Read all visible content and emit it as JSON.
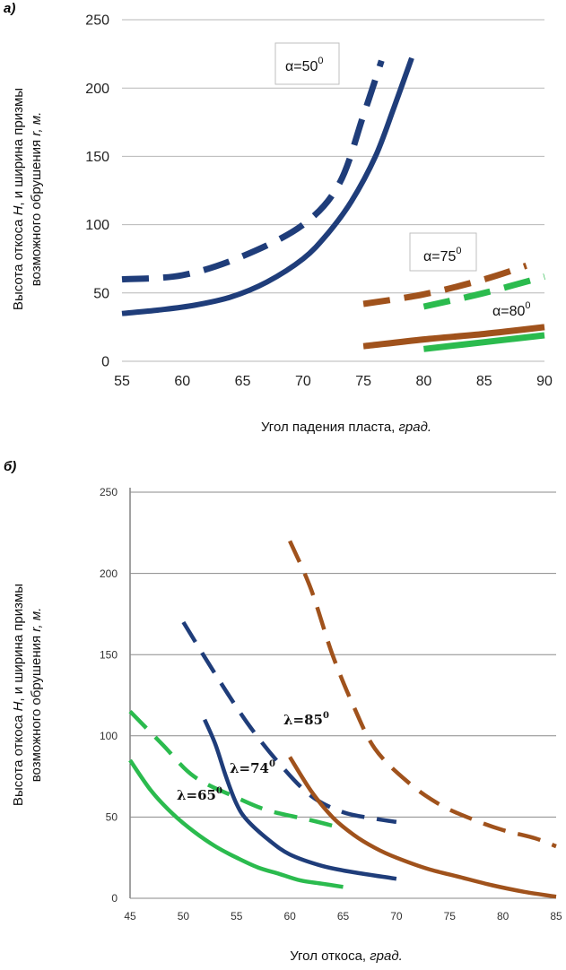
{
  "chart_data": [
    {
      "type": "line",
      "panel_label": "а)",
      "xlabel_plain": "Угол падения пласта, ",
      "xlabel_italic": "град.",
      "ylabel_line1_plain": "Высота откоса ",
      "ylabel_line1_italic": "H",
      "ylabel_line1_rest": ", и ширина призмы",
      "ylabel_line2_plain": "возможного обрушения ",
      "ylabel_line2_italic": "r, м.",
      "xlim": [
        55,
        90
      ],
      "ylim": [
        0,
        250
      ],
      "xticks": [
        "55",
        "60",
        "65",
        "70",
        "75",
        "80",
        "85",
        "90"
      ],
      "yticks": [
        "0",
        "50",
        "100",
        "150",
        "200",
        "250"
      ],
      "grid": "horizontal",
      "annotations": [
        {
          "text": "α=50",
          "sup": "0",
          "boxed": true
        },
        {
          "text": "α=75",
          "sup": "0",
          "boxed": true
        },
        {
          "text": "α=80",
          "sup": "0",
          "boxed": false
        }
      ],
      "series": [
        {
          "color": "#1f3d7a",
          "dash": true,
          "width": 7,
          "x": [
            55,
            60,
            65,
            70,
            73,
            75,
            76.5
          ],
          "y": [
            60,
            63,
            77,
            100,
            130,
            180,
            220
          ]
        },
        {
          "color": "#1f3d7a",
          "dash": false,
          "width": 6,
          "x": [
            55,
            58,
            61,
            64,
            67,
            70,
            72,
            74,
            76,
            77.5,
            79
          ],
          "y": [
            35,
            37.5,
            41,
            47,
            58,
            75,
            93,
            117,
            150,
            185,
            222
          ]
        },
        {
          "color": "#a0521c",
          "dash": true,
          "width": 7,
          "x": [
            75,
            80,
            85,
            88.5
          ],
          "y": [
            42,
            49,
            60,
            70
          ]
        },
        {
          "color": "#2bbb4e",
          "dash": true,
          "width": 7,
          "x": [
            80,
            85,
            90
          ],
          "y": [
            40,
            50,
            62
          ]
        },
        {
          "color": "#a0521c",
          "dash": false,
          "width": 7,
          "x": [
            75,
            80,
            85,
            90
          ],
          "y": [
            11,
            16,
            20,
            25
          ]
        },
        {
          "color": "#2bbb4e",
          "dash": false,
          "width": 7,
          "x": [
            80,
            85,
            90
          ],
          "y": [
            9,
            14,
            19
          ]
        }
      ]
    },
    {
      "type": "line",
      "panel_label": "б)",
      "xlabel_plain": "Угол откоса, ",
      "xlabel_italic": "град.",
      "ylabel_line1_plain": "Высота откоса ",
      "ylabel_line1_italic": "H",
      "ylabel_line1_rest": ", и ширина призмы",
      "ylabel_line2_plain": "возможного обрушения ",
      "ylabel_line2_italic": "r, м.",
      "xlim": [
        45,
        85
      ],
      "ylim": [
        0,
        250
      ],
      "xticks": [
        "45",
        "50",
        "55",
        "60",
        "65",
        "70",
        "75",
        "80",
        "85"
      ],
      "yticks": [
        "0",
        "50",
        "100",
        "150",
        "200",
        "250"
      ],
      "grid": "horizontal",
      "annotations": [
        {
          "text": "λ=85",
          "sup": "0"
        },
        {
          "text": "λ=74",
          "sup": "0"
        },
        {
          "text": "λ=65",
          "sup": "0"
        }
      ],
      "series": [
        {
          "color": "#2bbb4e",
          "dash": true,
          "width": 4.5,
          "x": [
            45,
            48,
            51,
            55,
            58,
            62,
            65
          ],
          "y": [
            115,
            95,
            75,
            62,
            54,
            48,
            43
          ]
        },
        {
          "color": "#2bbb4e",
          "dash": false,
          "width": 4.5,
          "x": [
            45,
            47,
            49,
            51,
            53,
            55,
            57,
            59,
            61,
            63,
            65
          ],
          "y": [
            85,
            66,
            52,
            41,
            32,
            25,
            19,
            15,
            11,
            9,
            7
          ]
        },
        {
          "color": "#1f3d7a",
          "dash": true,
          "width": 4.5,
          "x": [
            50,
            53,
            56,
            59,
            62,
            65,
            68,
            70
          ],
          "y": [
            170,
            138,
            108,
            83,
            63,
            53,
            49,
            47
          ]
        },
        {
          "color": "#1f3d7a",
          "dash": false,
          "width": 4.5,
          "x": [
            52,
            53,
            54,
            55,
            56,
            58,
            60,
            63,
            66,
            70
          ],
          "y": [
            110,
            95,
            75,
            58,
            48,
            36,
            27,
            20,
            16,
            12
          ]
        },
        {
          "color": "#a0521c",
          "dash": true,
          "width": 4.5,
          "x": [
            60,
            62,
            64,
            66,
            68,
            71,
            74,
            77,
            80,
            83,
            85
          ],
          "y": [
            220,
            190,
            150,
            118,
            92,
            72,
            58,
            49,
            42,
            37,
            32
          ]
        },
        {
          "color": "#a0521c",
          "dash": false,
          "width": 4.5,
          "x": [
            60,
            62,
            64,
            66,
            68,
            70,
            73,
            76,
            79,
            82,
            85
          ],
          "y": [
            87,
            66,
            50,
            39,
            31,
            25,
            18,
            13,
            8,
            4,
            1
          ]
        }
      ]
    }
  ]
}
